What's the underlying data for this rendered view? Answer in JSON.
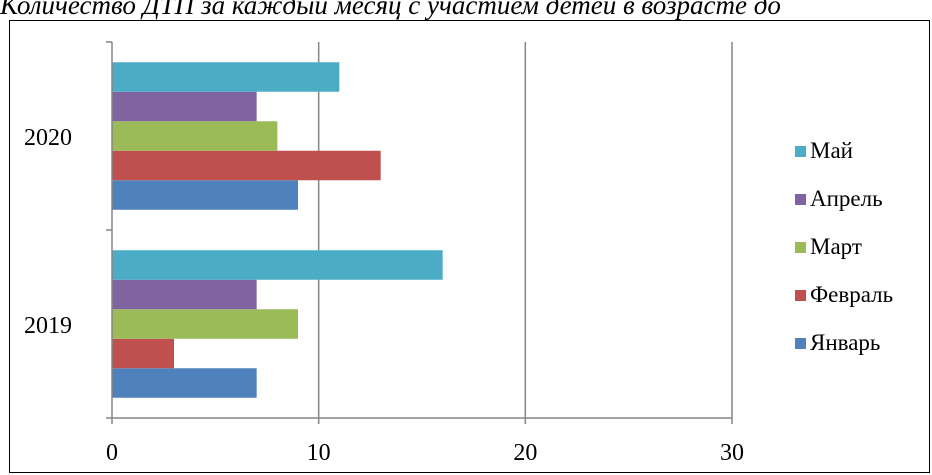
{
  "chart_data": {
    "type": "bar",
    "orientation": "horizontal",
    "title": "Количество ДТП за каждый месяц с участием детей в возрасте до",
    "categories": [
      "2019",
      "2020"
    ],
    "series": [
      {
        "name": "Январь",
        "color": "#4F81BD",
        "values": [
          7,
          9
        ]
      },
      {
        "name": "Февраль",
        "color": "#C0504D",
        "values": [
          3,
          13
        ]
      },
      {
        "name": "Март",
        "color": "#9BBB59",
        "values": [
          9,
          8
        ]
      },
      {
        "name": "Апрель",
        "color": "#8064A2",
        "values": [
          7,
          7
        ]
      },
      {
        "name": "Май",
        "color": "#4BACC6",
        "values": [
          16,
          11
        ]
      }
    ],
    "xlim": [
      0,
      30
    ],
    "xticks": [
      "0",
      "10",
      "20",
      "30"
    ],
    "grid": true,
    "legend_position": "right"
  }
}
